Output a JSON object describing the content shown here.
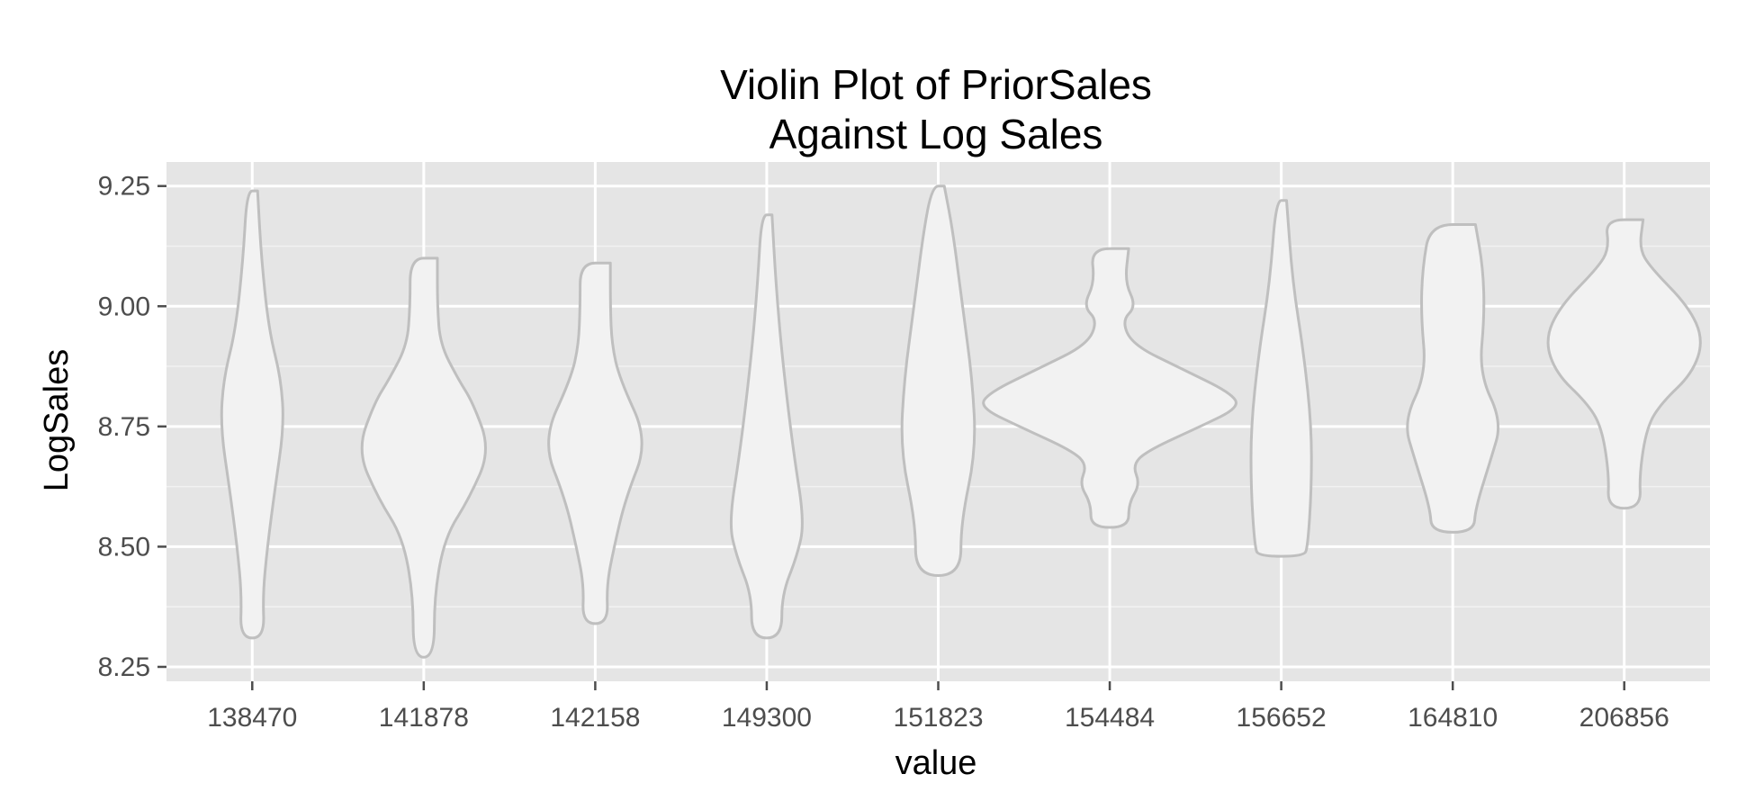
{
  "chart_data": {
    "type": "violin",
    "title_lines": [
      "Violin Plot of PriorSales",
      "Against Log Sales"
    ],
    "xlabel": "value",
    "ylabel": "LogSales",
    "categories": [
      "138470",
      "141878",
      "142158",
      "149300",
      "151823",
      "154484",
      "156652",
      "164810",
      "206856"
    ],
    "yticks": [
      "8.25",
      "8.50",
      "8.75",
      "9.00",
      "9.25"
    ],
    "ytick_values": [
      8.25,
      8.5,
      8.75,
      9.0,
      9.25
    ],
    "ylim": [
      8.22,
      9.3
    ],
    "grid": true,
    "colors": {
      "panel": "#e5e5e5",
      "grid_major": "#ffffff",
      "grid_minor": "#f2f2f2",
      "violin_fill": "#f2f2f2",
      "violin_stroke": "#bfbfbf",
      "tick": "#4d4d4d"
    },
    "violins": [
      {
        "category": "138470",
        "range": [
          8.31,
          9.24
        ],
        "profile": [
          [
            9.24,
            0.07
          ],
          [
            9.1,
            0.12
          ],
          [
            8.95,
            0.22
          ],
          [
            8.85,
            0.38
          ],
          [
            8.75,
            0.42
          ],
          [
            8.62,
            0.3
          ],
          [
            8.5,
            0.2
          ],
          [
            8.4,
            0.14
          ],
          [
            8.31,
            0.16
          ]
        ]
      },
      {
        "category": "141878",
        "range": [
          8.27,
          9.1
        ],
        "profile": [
          [
            9.1,
            0.18
          ],
          [
            9.0,
            0.18
          ],
          [
            8.92,
            0.22
          ],
          [
            8.85,
            0.45
          ],
          [
            8.8,
            0.65
          ],
          [
            8.7,
            0.88
          ],
          [
            8.6,
            0.6
          ],
          [
            8.52,
            0.28
          ],
          [
            8.4,
            0.14
          ],
          [
            8.27,
            0.14
          ]
        ]
      },
      {
        "category": "142158",
        "range": [
          8.34,
          9.09
        ],
        "profile": [
          [
            9.09,
            0.2
          ],
          [
            9.0,
            0.2
          ],
          [
            8.92,
            0.22
          ],
          [
            8.85,
            0.32
          ],
          [
            8.72,
            0.7
          ],
          [
            8.6,
            0.4
          ],
          [
            8.5,
            0.25
          ],
          [
            8.42,
            0.15
          ],
          [
            8.34,
            0.17
          ]
        ]
      },
      {
        "category": "149300",
        "range": [
          8.31,
          9.19
        ],
        "profile": [
          [
            9.19,
            0.07
          ],
          [
            9.05,
            0.12
          ],
          [
            8.9,
            0.2
          ],
          [
            8.7,
            0.35
          ],
          [
            8.55,
            0.5
          ],
          [
            8.48,
            0.4
          ],
          [
            8.4,
            0.2
          ],
          [
            8.31,
            0.2
          ]
        ]
      },
      {
        "category": "151823",
        "range": [
          8.44,
          9.25
        ],
        "profile": [
          [
            9.25,
            0.08
          ],
          [
            9.15,
            0.2
          ],
          [
            9.0,
            0.32
          ],
          [
            8.85,
            0.45
          ],
          [
            8.7,
            0.5
          ],
          [
            8.55,
            0.3
          ],
          [
            8.44,
            0.3
          ]
        ]
      },
      {
        "category": "154484",
        "range": [
          8.54,
          9.12
        ],
        "profile": [
          [
            9.12,
            0.25
          ],
          [
            9.05,
            0.2
          ],
          [
            9.0,
            0.35
          ],
          [
            8.97,
            0.16
          ],
          [
            8.92,
            0.3
          ],
          [
            8.87,
            0.95
          ],
          [
            8.82,
            1.6
          ],
          [
            8.79,
            1.72
          ],
          [
            8.75,
            1.2
          ],
          [
            8.7,
            0.5
          ],
          [
            8.67,
            0.3
          ],
          [
            8.63,
            0.4
          ],
          [
            8.59,
            0.25
          ],
          [
            8.54,
            0.25
          ]
        ]
      },
      {
        "category": "156652",
        "range": [
          8.48,
          9.22
        ],
        "profile": [
          [
            9.22,
            0.07
          ],
          [
            9.05,
            0.15
          ],
          [
            8.9,
            0.3
          ],
          [
            8.75,
            0.4
          ],
          [
            8.62,
            0.4
          ],
          [
            8.5,
            0.35
          ],
          [
            8.48,
            0.3
          ]
        ]
      },
      {
        "category": "164810",
        "range": [
          8.53,
          9.17
        ],
        "profile": [
          [
            9.17,
            0.3
          ],
          [
            9.08,
            0.4
          ],
          [
            8.98,
            0.42
          ],
          [
            8.86,
            0.35
          ],
          [
            8.76,
            0.65
          ],
          [
            8.68,
            0.5
          ],
          [
            8.58,
            0.3
          ],
          [
            8.53,
            0.28
          ]
        ]
      },
      {
        "category": "206856",
        "range": [
          8.58,
          9.18
        ],
        "profile": [
          [
            9.18,
            0.25
          ],
          [
            9.12,
            0.2
          ],
          [
            9.08,
            0.35
          ],
          [
            9.0,
            0.85
          ],
          [
            8.93,
            1.05
          ],
          [
            8.86,
            0.9
          ],
          [
            8.8,
            0.5
          ],
          [
            8.75,
            0.3
          ],
          [
            8.65,
            0.2
          ],
          [
            8.58,
            0.22
          ]
        ]
      }
    ]
  }
}
